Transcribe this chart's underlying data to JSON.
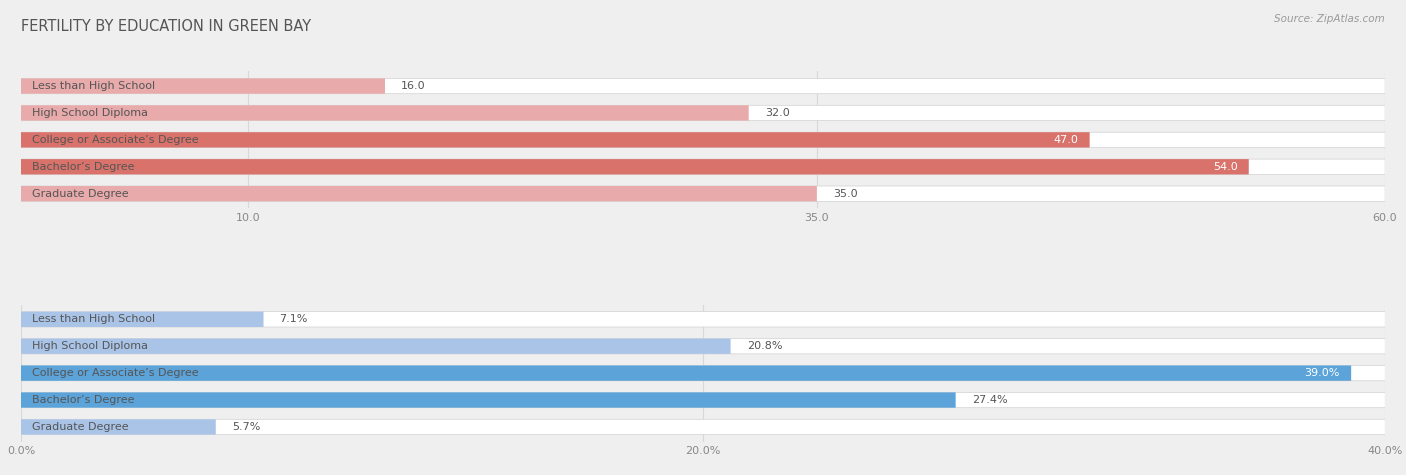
{
  "title": "FERTILITY BY EDUCATION IN GREEN BAY",
  "source": "Source: ZipAtlas.com",
  "top_section": {
    "categories": [
      "Less than High School",
      "High School Diploma",
      "College or Associate’s Degree",
      "Bachelor’s Degree",
      "Graduate Degree"
    ],
    "values": [
      16.0,
      32.0,
      47.0,
      54.0,
      35.0
    ],
    "value_labels": [
      "16.0",
      "32.0",
      "47.0",
      "54.0",
      "35.0"
    ],
    "x_ticks": [
      10.0,
      35.0,
      60.0
    ],
    "x_tick_labels": [
      "10.0",
      "35.0",
      "60.0"
    ],
    "x_min": 0,
    "x_max": 60.0,
    "bar_colors": [
      "#e8aaaa",
      "#e8aaaa",
      "#d9726b",
      "#d9726b",
      "#e8aaaa"
    ],
    "label_inside_threshold": 30.0,
    "value_inside_threshold": 40.0
  },
  "bottom_section": {
    "categories": [
      "Less than High School",
      "High School Diploma",
      "College or Associate’s Degree",
      "Bachelor’s Degree",
      "Graduate Degree"
    ],
    "values": [
      7.1,
      20.8,
      39.0,
      27.4,
      5.7
    ],
    "value_labels": [
      "7.1%",
      "20.8%",
      "39.0%",
      "27.4%",
      "5.7%"
    ],
    "x_ticks": [
      0.0,
      20.0,
      40.0
    ],
    "x_tick_labels": [
      "0.0%",
      "20.0%",
      "40.0%"
    ],
    "x_min": 0,
    "x_max": 40.0,
    "bar_colors": [
      "#aac4e8",
      "#aac4e8",
      "#5ba3d9",
      "#5ba3d9",
      "#aac4e8"
    ],
    "label_inside_threshold": 14.0,
    "value_inside_threshold": 30.0
  },
  "bg_color": "#efefef",
  "bar_bg_color": "#ffffff",
  "bar_height": 0.55,
  "label_fontsize": 8.0,
  "value_fontsize": 8.0,
  "title_fontsize": 10.5,
  "tick_fontsize": 8.0,
  "title_color": "#555555",
  "source_color": "#999999",
  "label_dark_color": "#555555",
  "label_light_color": "#ffffff",
  "grid_color": "#d8d8d8",
  "bar_edge_color": "#d0d0d0"
}
